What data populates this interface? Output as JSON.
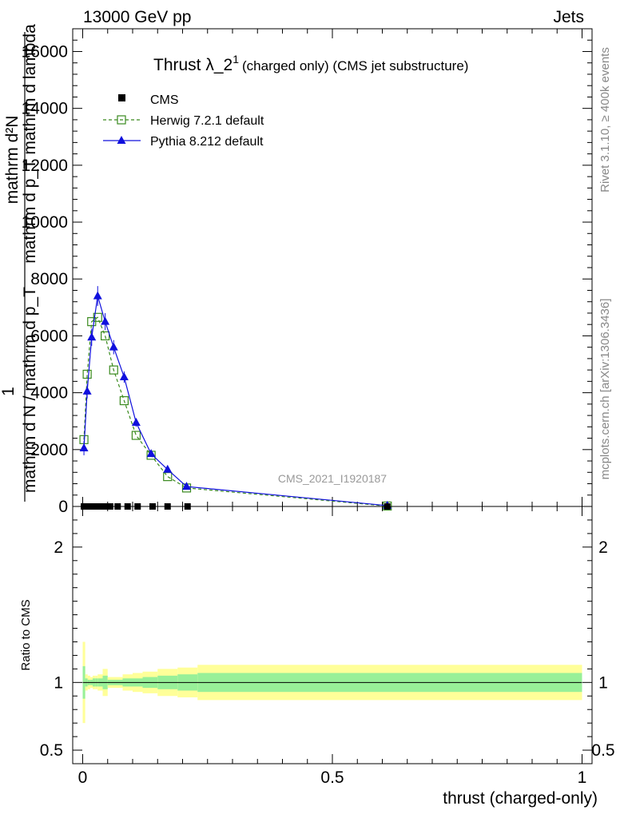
{
  "header": {
    "left": "13000 GeV pp",
    "right": "Jets"
  },
  "side_labels": {
    "rivet": "Rivet 3.1.10, ≥ 400k events",
    "mcplots": "mcplots.cern.ch [arXiv:1306.3436]"
  },
  "chart_data": {
    "type": "line",
    "title_main": "Thrust λ_2",
    "title_sup": "1",
    "title_rest": "(charged only) (CMS jet substructure)",
    "analysis_tag": "CMS_2021_I1920187",
    "xlabel": "thrust (charged-only)",
    "ylabel_numerator": "mathrm d²N",
    "ylabel_numerator_2": "mathrm d p_T mathrm d lambda",
    "ylabel_fraction_one": "1",
    "ylabel_denominator": "mathrm d N / mathrm d p_T",
    "xlim": [
      -0.02,
      1.02
    ],
    "ylim": [
      0,
      16800
    ],
    "x_ticks": [
      0,
      0.5,
      1
    ],
    "x_tick_labels": [
      "0",
      "0.5",
      "1"
    ],
    "y_ticks": [
      0,
      2000,
      4000,
      6000,
      8000,
      10000,
      12000,
      14000,
      16000
    ],
    "y_tick_labels": [
      "0",
      "2000",
      "4000",
      "6000",
      "8000",
      "10000",
      "12000",
      "14000",
      "16000"
    ],
    "legend_position": "top-left",
    "series": [
      {
        "name": "CMS",
        "marker": "square-filled",
        "color": "#000000",
        "x": [
          0.0025,
          0.0075,
          0.0125,
          0.0175,
          0.0225,
          0.0275,
          0.035,
          0.045,
          0.055,
          0.07,
          0.09,
          0.11,
          0.14,
          0.17,
          0.21,
          0.61
        ],
        "y": [
          0,
          0,
          0,
          0,
          0,
          0,
          0,
          0,
          0,
          0,
          0,
          0,
          0,
          0,
          0,
          0
        ]
      },
      {
        "name": "Herwig 7.2.1 default",
        "marker": "square-open",
        "line": "dashed",
        "color": "#3a8a1e",
        "x": [
          0.0025,
          0.009,
          0.018,
          0.03,
          0.045,
          0.062,
          0.083,
          0.107,
          0.137,
          0.17,
          0.208,
          0.61
        ],
        "y": [
          2350,
          4650,
          6500,
          6650,
          6000,
          4800,
          3720,
          2500,
          1800,
          1050,
          650,
          15
        ]
      },
      {
        "name": "Pythia 8.212 default",
        "marker": "triangle-filled",
        "line": "solid",
        "color": "#1010dd",
        "x": [
          0.0025,
          0.009,
          0.018,
          0.03,
          0.045,
          0.062,
          0.083,
          0.107,
          0.137,
          0.17,
          0.208,
          0.61
        ],
        "y": [
          2050,
          4050,
          5950,
          7400,
          6500,
          5600,
          4550,
          2950,
          1850,
          1300,
          700,
          30
        ],
        "yerr": [
          250,
          250,
          300,
          350,
          300,
          250,
          200,
          150,
          100,
          80,
          60,
          10
        ]
      }
    ],
    "ratio_panel": {
      "ylabel": "Ratio to CMS",
      "ylim": [
        0.4,
        2.3
      ],
      "y_ticks": [
        0.5,
        1,
        2
      ],
      "y_tick_labels": [
        "0.5",
        "1",
        "2"
      ],
      "reference_line": 1,
      "band_edges": [
        0,
        0.005,
        0.01,
        0.015,
        0.02,
        0.025,
        0.03,
        0.04,
        0.05,
        0.06,
        0.08,
        0.1,
        0.12,
        0.15,
        0.19,
        0.23,
        1.0
      ],
      "band_inner_half": [
        0.12,
        0.03,
        0.02,
        0.02,
        0.03,
        0.03,
        0.03,
        0.05,
        0.02,
        0.02,
        0.03,
        0.03,
        0.04,
        0.05,
        0.06,
        0.07
      ],
      "band_outer_half": [
        0.3,
        0.06,
        0.05,
        0.04,
        0.05,
        0.05,
        0.06,
        0.1,
        0.04,
        0.04,
        0.06,
        0.07,
        0.08,
        0.1,
        0.11,
        0.13
      ],
      "band_inner_color": "#98f098",
      "band_outer_color": "#ffff99"
    }
  }
}
